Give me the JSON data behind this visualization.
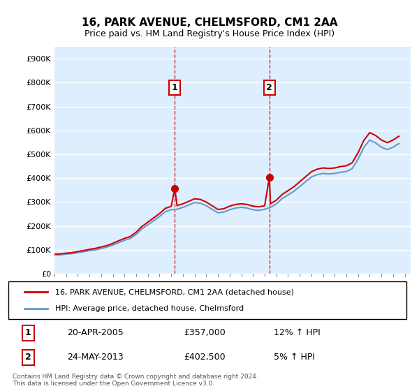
{
  "title": "16, PARK AVENUE, CHELMSFORD, CM1 2AA",
  "subtitle": "Price paid vs. HM Land Registry's House Price Index (HPI)",
  "ylabel_ticks": [
    "£0",
    "£100K",
    "£200K",
    "£300K",
    "£400K",
    "£500K",
    "£600K",
    "£700K",
    "£800K",
    "£900K"
  ],
  "ytick_values": [
    0,
    100000,
    200000,
    300000,
    400000,
    500000,
    600000,
    700000,
    800000,
    900000
  ],
  "ylim": [
    0,
    950000
  ],
  "xlim_start": 1995.0,
  "xlim_end": 2025.5,
  "red_color": "#cc0000",
  "blue_color": "#6699cc",
  "background_color": "#ddeeff",
  "plot_bg": "#ddeeff",
  "grid_color": "#ffffff",
  "legend_label_red": "16, PARK AVENUE, CHELMSFORD, CM1 2AA (detached house)",
  "legend_label_blue": "HPI: Average price, detached house, Chelmsford",
  "sale1_date": "20-APR-2005",
  "sale1_price": "£357,000",
  "sale1_hpi": "12% ↑ HPI",
  "sale1_year": 2005.3,
  "sale1_value": 357000,
  "sale2_date": "24-MAY-2013",
  "sale2_price": "£402,500",
  "sale2_hpi": "5% ↑ HPI",
  "sale2_year": 2013.4,
  "sale2_value": 402500,
  "footer": "Contains HM Land Registry data © Crown copyright and database right 2024.\nThis data is licensed under the Open Government Licence v3.0.",
  "hpi_years": [
    1995,
    1995.5,
    1996,
    1996.5,
    1997,
    1997.5,
    1998,
    1998.5,
    1999,
    1999.5,
    2000,
    2000.5,
    2001,
    2001.5,
    2002,
    2002.5,
    2003,
    2003.5,
    2004,
    2004.5,
    2005,
    2005.5,
    2006,
    2006.5,
    2007,
    2007.5,
    2008,
    2008.5,
    2009,
    2009.5,
    2010,
    2010.5,
    2011,
    2011.5,
    2012,
    2012.5,
    2013,
    2013.5,
    2014,
    2014.5,
    2015,
    2015.5,
    2016,
    2016.5,
    2017,
    2017.5,
    2018,
    2018.5,
    2019,
    2019.5,
    2020,
    2020.5,
    2021,
    2021.5,
    2022,
    2022.5,
    2023,
    2023.5,
    2024,
    2024.5
  ],
  "hpi_values": [
    78000,
    79000,
    82000,
    84000,
    88000,
    92000,
    97000,
    100000,
    105000,
    112000,
    120000,
    130000,
    140000,
    148000,
    165000,
    188000,
    205000,
    222000,
    240000,
    260000,
    268000,
    270000,
    278000,
    288000,
    298000,
    295000,
    285000,
    270000,
    255000,
    258000,
    268000,
    275000,
    278000,
    275000,
    268000,
    265000,
    270000,
    278000,
    292000,
    315000,
    330000,
    345000,
    365000,
    385000,
    405000,
    415000,
    420000,
    418000,
    420000,
    425000,
    428000,
    440000,
    480000,
    530000,
    560000,
    548000,
    530000,
    520000,
    530000,
    545000
  ],
  "red_years": [
    1995,
    1995.5,
    1996,
    1996.5,
    1997,
    1997.5,
    1998,
    1998.5,
    1999,
    1999.5,
    2000,
    2000.5,
    2001,
    2001.5,
    2002,
    2002.5,
    2003,
    2003.5,
    2004,
    2004.5,
    2005,
    2005.3,
    2005.3,
    2005.5,
    2006,
    2006.5,
    2007,
    2007.5,
    2008,
    2008.5,
    2009,
    2009.5,
    2010,
    2010.5,
    2011,
    2011.5,
    2012,
    2012.5,
    2013,
    2013.4,
    2013.4,
    2013.5,
    2014,
    2014.5,
    2015,
    2015.5,
    2016,
    2016.5,
    2017,
    2017.5,
    2018,
    2018.5,
    2019,
    2019.5,
    2020,
    2020.5,
    2021,
    2021.5,
    2022,
    2022.5,
    2023,
    2023.5,
    2024,
    2024.5
  ],
  "red_values": [
    82000,
    83000,
    86000,
    88000,
    93000,
    97000,
    102000,
    106000,
    112000,
    118000,
    127000,
    138000,
    148000,
    156000,
    174000,
    198000,
    216000,
    234000,
    252000,
    274000,
    282000,
    357000,
    357000,
    285000,
    293000,
    303000,
    314000,
    311000,
    300000,
    285000,
    269000,
    272000,
    283000,
    290000,
    293000,
    290000,
    283000,
    280000,
    285000,
    402500,
    402500,
    293000,
    308000,
    332000,
    348000,
    364000,
    385000,
    406000,
    427000,
    438000,
    443000,
    441000,
    443000,
    449000,
    452000,
    465000,
    507000,
    559000,
    591000,
    579000,
    560000,
    549000,
    560000,
    576000
  ]
}
